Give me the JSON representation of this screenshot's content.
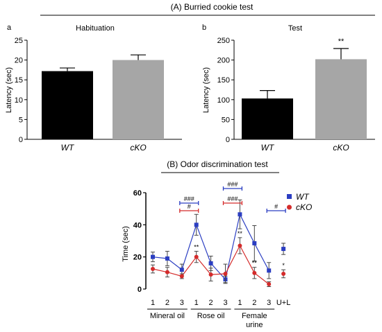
{
  "figure": {
    "section_a_title": "(A) Burried  cookie test",
    "section_b_title": "(B) Odor discrimination test"
  },
  "chart_data": [
    {
      "type": "bar",
      "panel_letter": "a",
      "title": "Habituation",
      "ylabel": "Latency (sec)",
      "ylim": [
        0,
        25
      ],
      "yticks": [
        "0",
        "5",
        "10",
        "15",
        "20",
        "25"
      ],
      "categories": [
        "WT",
        "cKO"
      ],
      "values": [
        17.2,
        20.0
      ],
      "errors": [
        0.8,
        1.3
      ],
      "colors": [
        "#000000",
        "#a6a6a6"
      ],
      "annotations": [
        "",
        ""
      ]
    },
    {
      "type": "bar",
      "panel_letter": "b",
      "title": "Test",
      "ylabel": "Latency (sec)",
      "ylim": [
        0,
        250
      ],
      "yticks": [
        "0",
        "50",
        "100",
        "150",
        "200",
        "250"
      ],
      "categories": [
        "WT",
        "cKO"
      ],
      "values": [
        103,
        202
      ],
      "errors": [
        20,
        27
      ],
      "colors": [
        "#000000",
        "#a6a6a6"
      ],
      "annotations": [
        "",
        "**"
      ]
    },
    {
      "type": "line",
      "ylabel": "Time (sec)",
      "ylim": [
        0,
        60
      ],
      "yticks": [
        "0",
        "20",
        "40",
        "60"
      ],
      "categories": [
        "1",
        "2",
        "3",
        "1",
        "2",
        "3",
        "1",
        "2",
        "3",
        "U+L"
      ],
      "groups": [
        {
          "label": "Mineral oil",
          "span": [
            0,
            2
          ]
        },
        {
          "label": "Rose oil",
          "span": [
            3,
            5
          ]
        },
        {
          "label": "Female\nurine",
          "span": [
            6,
            8
          ]
        }
      ],
      "series": [
        {
          "name": "WT",
          "color": "#2b3ec2",
          "values": [
            20,
            19,
            12,
            40,
            16,
            6,
            46.5,
            28.5,
            11.5,
            25
          ],
          "errors": [
            3,
            4.5,
            3.5,
            6.5,
            4.5,
            2,
            9,
            11,
            5,
            3.5
          ]
        },
        {
          "name": "cKO",
          "color": "#d42b2b",
          "values": [
            12.5,
            10.5,
            8,
            20,
            9,
            9.5,
            27,
            10,
            3,
            9.5
          ],
          "errors": [
            2.5,
            3,
            1.5,
            3.5,
            4,
            6,
            5,
            3.5,
            1.5,
            2.5
          ]
        }
      ],
      "point_labels": [
        "",
        "",
        "",
        "**",
        "",
        "",
        "**",
        "**",
        "",
        "*"
      ],
      "brackets": [
        {
          "label": "###",
          "color": "#2b3ec2",
          "from": 2,
          "to": 3,
          "y_level": 1
        },
        {
          "label": "#",
          "color": "#d42b2b",
          "from": 2,
          "to": 3,
          "y_level": 0
        },
        {
          "label": "###",
          "color": "#2b3ec2",
          "from": 5,
          "to": 6,
          "y_level": 2
        },
        {
          "label": "###",
          "color": "#d42b2b",
          "from": 5,
          "to": 6,
          "y_level": 1
        },
        {
          "label": "#",
          "color": "#2b3ec2",
          "from": 8,
          "to": 9,
          "y_level": 0
        }
      ],
      "legend_position": "top-right"
    }
  ]
}
